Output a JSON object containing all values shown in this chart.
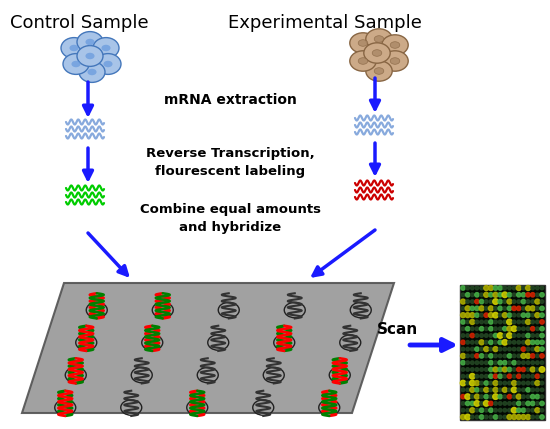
{
  "bg_color": "#ffffff",
  "arrow_color": "#1a1aff",
  "text_color": "#000000",
  "labels": {
    "control": "Control Sample",
    "experimental": "Experimental Sample",
    "mrna": "mRNA extraction",
    "reverse": "Reverse Transcription,\nflourescent labeling",
    "combine": "Combine equal amounts\nand hybridize",
    "scan": "Scan"
  },
  "control_cell_color": "#a8c4e8",
  "control_cell_edge": "#4477bb",
  "exp_cell_color": "#ccaa88",
  "exp_cell_edge": "#886644",
  "green_wave_color": "#00cc00",
  "red_wave_color": "#cc0000",
  "blue_wave_color": "#88aadd",
  "chip_color": "#999999",
  "chip_edge": "#555555",
  "coil_pattern": [
    [
      "red",
      "green"
    ],
    [
      "red",
      "green"
    ],
    [
      "black",
      "black"
    ],
    [
      "black",
      "black"
    ],
    [
      "black",
      "black"
    ],
    [
      "green",
      "red"
    ],
    [
      "red",
      "green"
    ],
    [
      "black",
      "black"
    ],
    [
      "green",
      "red"
    ],
    [
      "black",
      "black"
    ],
    [
      "green",
      "red"
    ],
    [
      "black",
      "black"
    ],
    [
      "black",
      "black"
    ],
    [
      "black",
      "black"
    ],
    [
      "green",
      "red"
    ],
    [
      "green",
      "red"
    ],
    [
      "black",
      "black"
    ],
    [
      "red",
      "green"
    ],
    [
      "black",
      "black"
    ],
    [
      "red",
      "green"
    ]
  ]
}
